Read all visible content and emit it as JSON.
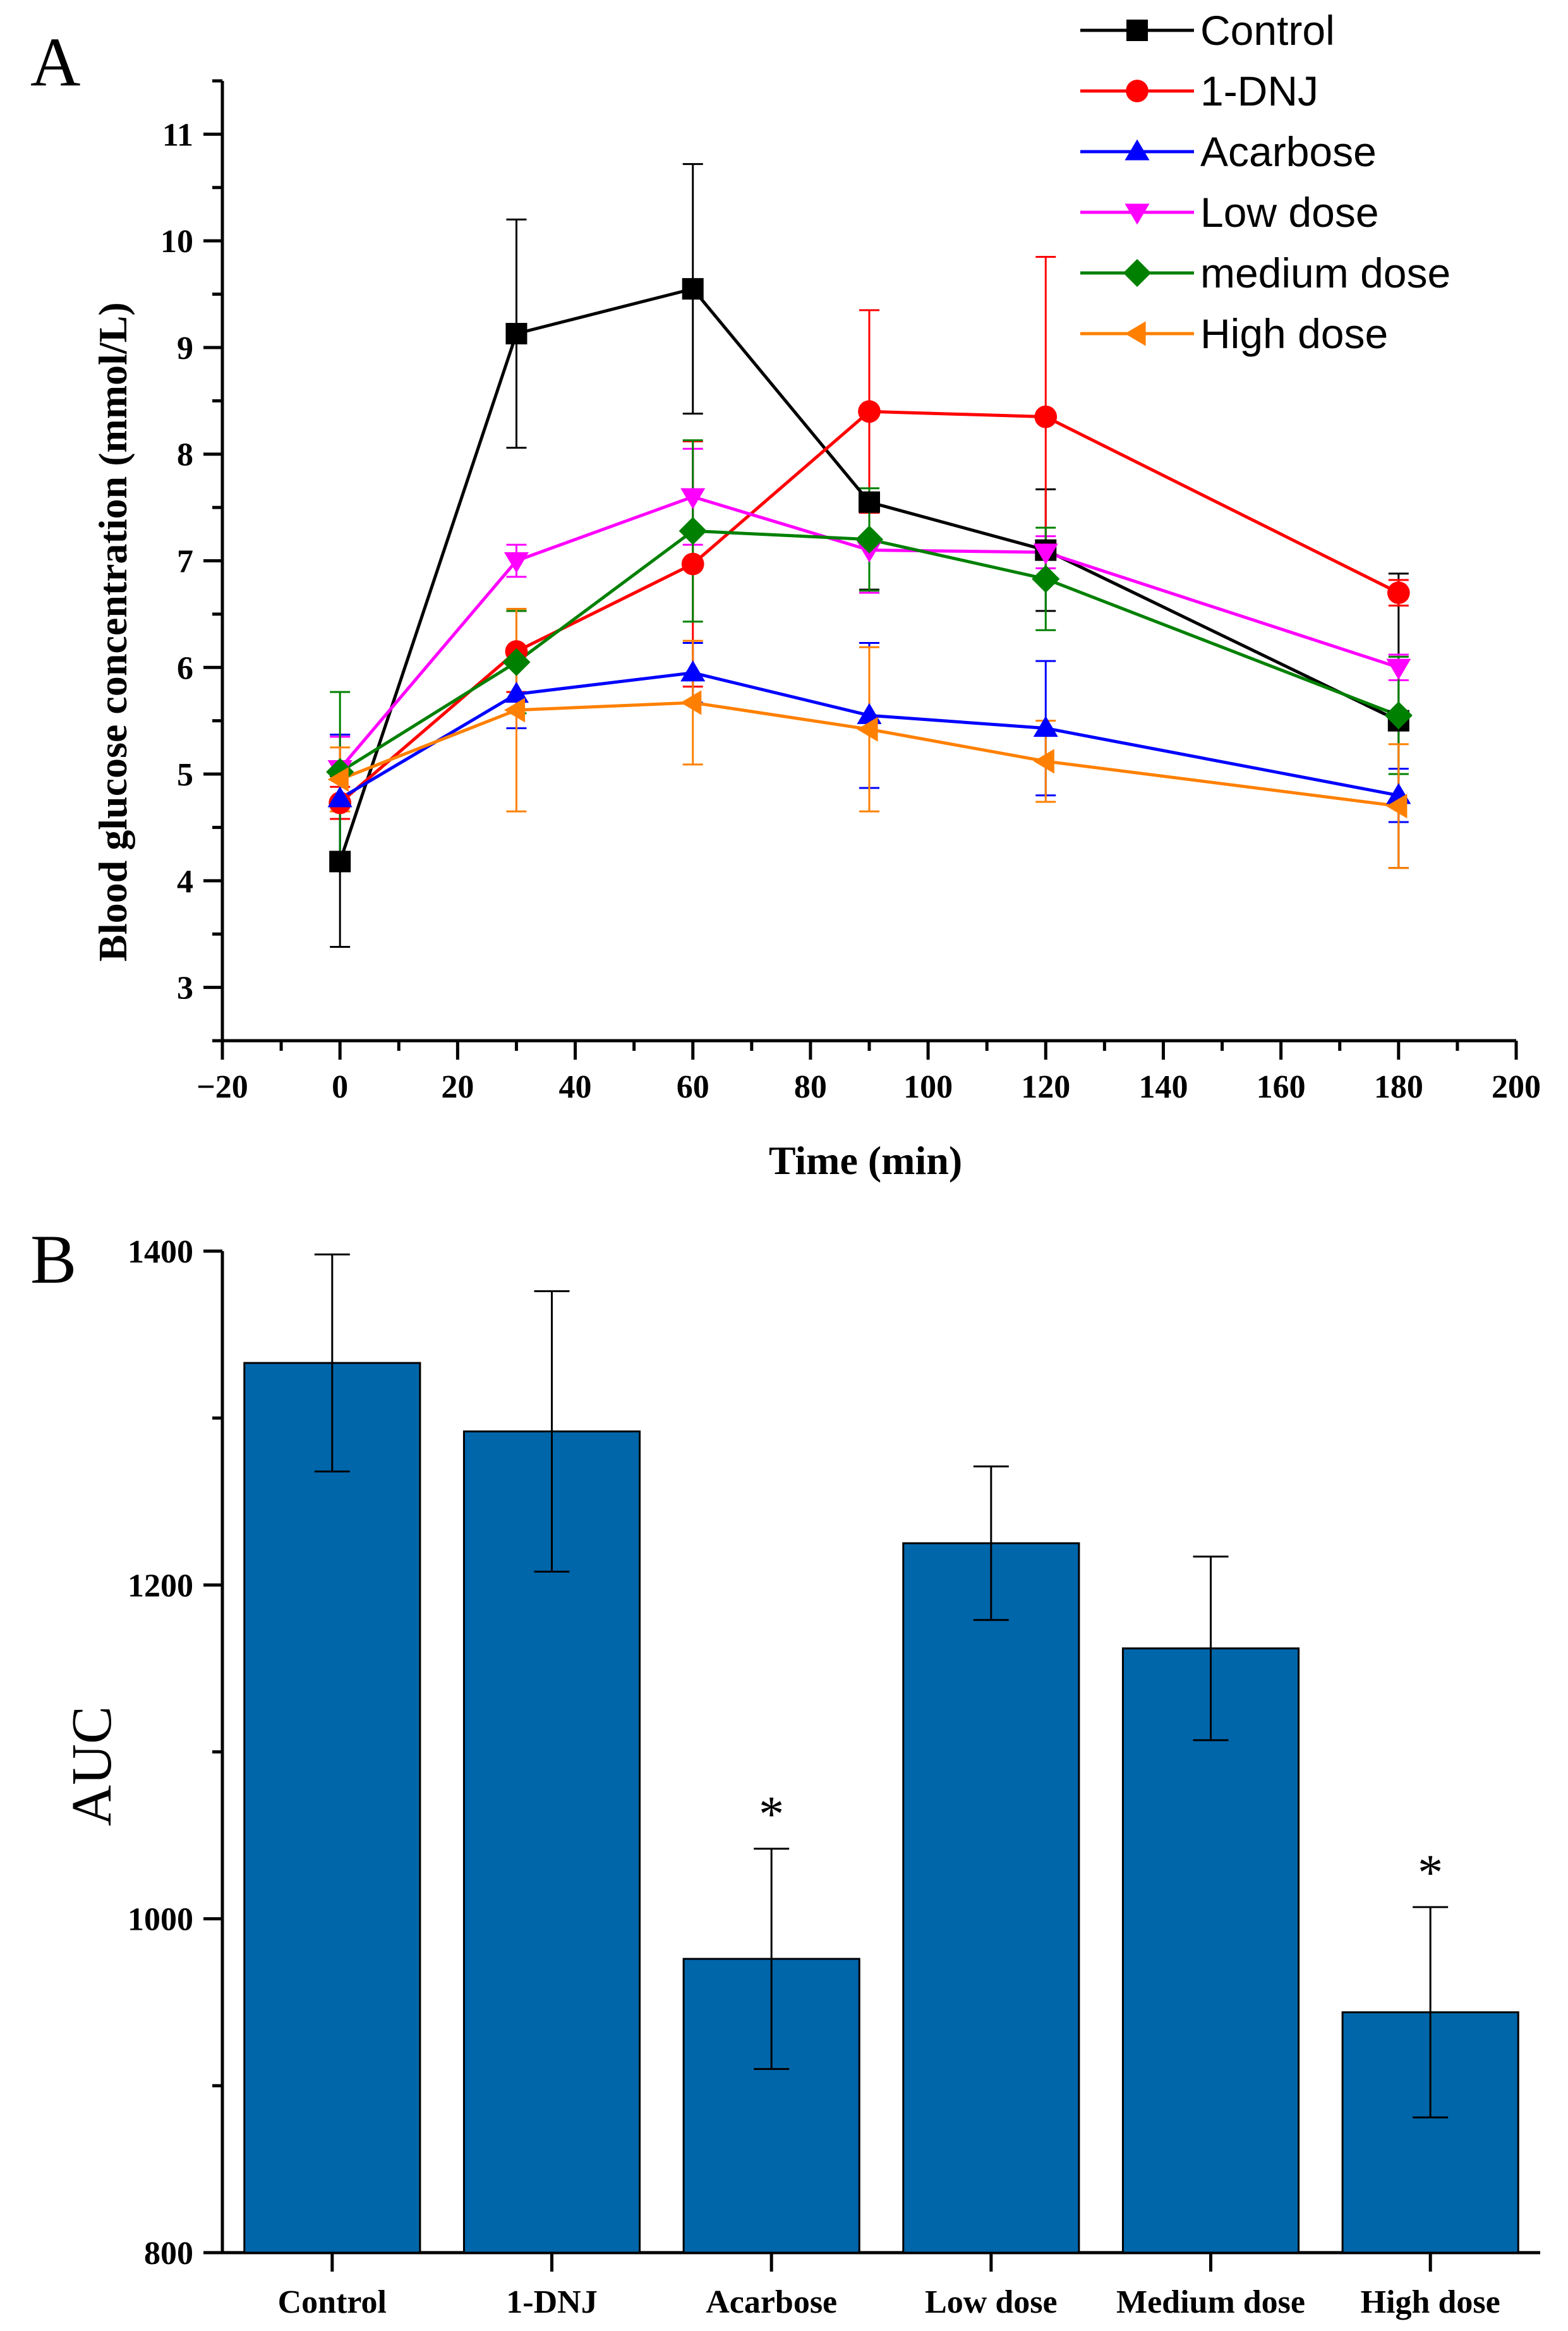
{
  "chart_data": [
    {
      "type": "line",
      "panel_label": "A",
      "xlabel": "Time (min)",
      "ylabel": "Blood glucose concentration (mmol/L)",
      "xlim": [
        -20,
        200
      ],
      "ylim": [
        2.5,
        11.5
      ],
      "x_ticks": [
        -20,
        0,
        20,
        40,
        60,
        80,
        100,
        120,
        140,
        160,
        180,
        200
      ],
      "x_tick_labels": [
        "−20",
        "0",
        "20",
        "40",
        "60",
        "80",
        "100",
        "120",
        "140",
        "160",
        "180",
        "200"
      ],
      "y_ticks": [
        3,
        4,
        5,
        6,
        7,
        8,
        9,
        10,
        11
      ],
      "y_tick_labels": [
        "3",
        "4",
        "5",
        "6",
        "7",
        "8",
        "9",
        "10",
        "11"
      ],
      "legend_position": "top-right",
      "x": [
        0,
        30,
        60,
        90,
        120,
        180
      ],
      "series": [
        {
          "name": "Control",
          "color": "#000000",
          "marker": "square",
          "values": [
            4.18,
            9.13,
            9.55,
            7.55,
            7.1,
            5.5
          ],
          "errors": [
            0.8,
            1.07,
            1.17,
            0.82,
            0.57,
            1.38
          ]
        },
        {
          "name": "1-DNJ",
          "color": "#ff0000",
          "marker": "circle",
          "values": [
            4.73,
            6.15,
            6.97,
            8.4,
            8.35,
            6.7
          ],
          "errors": [
            0.15,
            0.38,
            1.15,
            0.95,
            1.5,
            0.12
          ]
        },
        {
          "name": "Acarbose",
          "color": "#0000ff",
          "marker": "triangle-up",
          "values": [
            4.77,
            5.75,
            5.95,
            5.55,
            5.43,
            4.8
          ],
          "errors": [
            0.6,
            0.32,
            0.28,
            0.68,
            0.63,
            0.25
          ]
        },
        {
          "name": "Low dose",
          "color": "#ff00ff",
          "marker": "triangle-down",
          "values": [
            5.05,
            7.0,
            7.6,
            7.1,
            7.08,
            6.0
          ],
          "errors": [
            0.3,
            0.15,
            0.45,
            0.4,
            0.15,
            0.12
          ]
        },
        {
          "name": "medium dose",
          "color": "#008000",
          "marker": "diamond",
          "values": [
            5.02,
            6.05,
            7.28,
            7.2,
            6.83,
            5.55
          ],
          "errors": [
            0.75,
            0.48,
            0.85,
            0.48,
            0.48,
            0.55
          ]
        },
        {
          "name": "High dose",
          "color": "#ff8000",
          "marker": "triangle-left",
          "values": [
            4.95,
            5.6,
            5.67,
            5.42,
            5.12,
            4.7
          ],
          "errors": [
            0.3,
            0.95,
            0.58,
            0.77,
            0.38,
            0.58
          ]
        }
      ]
    },
    {
      "type": "bar",
      "panel_label": "B",
      "xlabel": "",
      "ylabel": "AUC",
      "ylim": [
        800,
        1400
      ],
      "y_ticks": [
        800,
        1000,
        1200,
        1400
      ],
      "y_tick_labels": [
        "800",
        "1000",
        "1200",
        "1400"
      ],
      "bar_color": "#0066aa",
      "categories": [
        "Control",
        "1-DNJ",
        "Acarbose",
        "Low dose",
        "Medium dose",
        "High dose"
      ],
      "values": [
        1333,
        1292,
        976,
        1225,
        1162,
        944
      ],
      "errors": [
        65,
        84,
        66,
        46,
        55,
        63
      ],
      "annotations": [
        "",
        "",
        "*",
        "",
        "",
        "*"
      ]
    }
  ]
}
